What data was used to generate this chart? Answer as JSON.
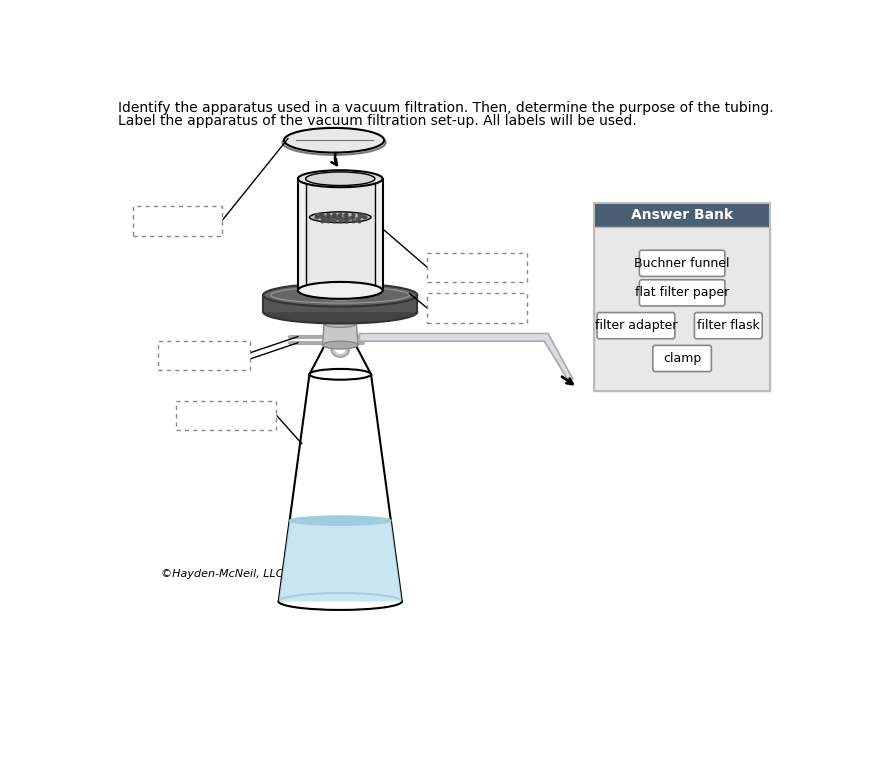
{
  "title_line1": "Identify the apparatus used in a vacuum filtration. Then, determine the purpose of the tubing.",
  "title_line2": "Label the apparatus of the vacuum filtration set-up. All labels will be used.",
  "copyright": "©Hayden-McNeil, LLC",
  "answer_bank_title": "Answer Bank",
  "answer_bank_items": [
    [
      "Buchner funnel"
    ],
    [
      "flat filter paper"
    ],
    [
      "filter adapter",
      "filter flask"
    ],
    [
      "clamp"
    ]
  ],
  "bg_color": "#ffffff",
  "answer_bank_header_bg": "#4a5f73",
  "answer_bank_body_bg": "#e8e8e8",
  "answer_bank_text_color": "#ffffff",
  "answer_item_border": "#999999",
  "answer_item_bg": "#ffffff",
  "funnel_body_color": "#f0f0f0",
  "funnel_inner_color": "#c8c8c8",
  "adapter_color": "#555555",
  "flask_liquid_color": "#c0e4f0",
  "tube_color": "#d0d8e0",
  "clamp_color": "#c8c8c8"
}
